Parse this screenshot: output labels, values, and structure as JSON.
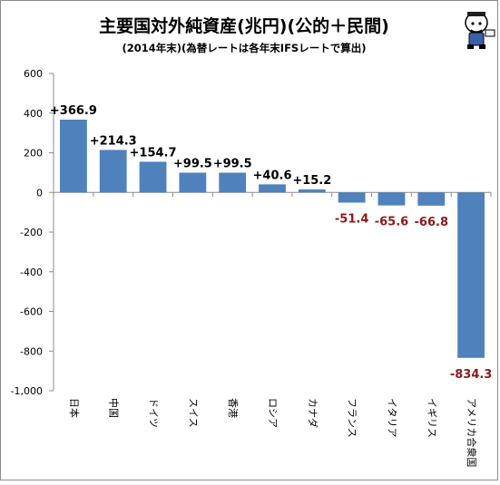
{
  "chart_data": {
    "type": "bar",
    "title": "主要国対外純資産(兆円)(公的＋民間)",
    "subtitle": "(2014年末)(為替レートは各年末IFSレートで算出)",
    "categories": [
      "日本",
      "中国",
      "ドイツ",
      "スイス",
      "香港",
      "ロシア",
      "カナダ",
      "フランス",
      "イタリア",
      "イギリス",
      "アメリカ合衆国"
    ],
    "values": [
      366.9,
      214.3,
      154.7,
      99.5,
      99.5,
      40.6,
      15.2,
      -51.4,
      -65.6,
      -66.8,
      -834.3
    ],
    "data_labels": [
      "+366.9",
      "+214.3",
      "+154.7",
      "+99.5",
      "+99.5",
      "+40.6",
      "+15.2",
      "-51.4",
      "-65.6",
      "-66.8",
      "-834.3"
    ],
    "ylim": [
      -1000,
      600
    ],
    "yticks": [
      600,
      400,
      200,
      0,
      -200,
      -400,
      -600,
      -800,
      -1000
    ],
    "ytick_labels": [
      "600",
      "400",
      "200",
      "0",
      "-200",
      "-400",
      "-600",
      "-800",
      "-1,000"
    ],
    "grid": false,
    "colors": {
      "bar": "#4f81bd",
      "positive_label": "#000000",
      "negative_label": "#8b1a1a",
      "axis": "#8c8c8c"
    }
  }
}
